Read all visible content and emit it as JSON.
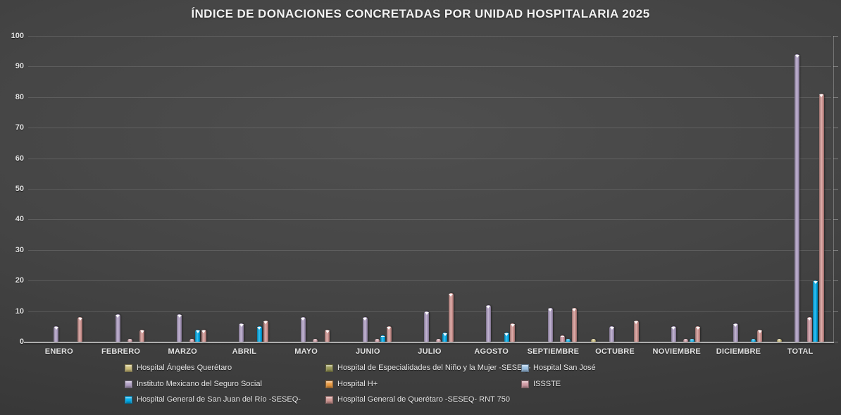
{
  "chart_data": {
    "type": "bar",
    "title": "ÍNDICE DE DONACIONES CONCRETADAS POR UNIDAD HOSPITALARIA 2025",
    "categories": [
      "ENERO",
      "FEBRERO",
      "MARZO",
      "ABRIL",
      "MAYO",
      "JUNIO",
      "JULIO",
      "AGOSTO",
      "SEPTIEMBRE",
      "OCTUBRE",
      "NOVIEMBRE",
      "DICIEMBRE",
      "TOTAL"
    ],
    "series": [
      {
        "name": "Hospital Ángeles Querétaro",
        "color": "#cfc07a",
        "values": [
          0,
          0,
          0,
          0,
          0,
          0,
          0,
          0,
          0,
          1,
          0,
          0,
          1
        ]
      },
      {
        "name": "Hospital de Especialidades del Niño y la Mujer -SESEQ-",
        "color": "#9a9a57",
        "values": [
          0,
          0,
          0,
          0,
          0,
          0,
          0,
          0,
          0,
          0,
          0,
          0,
          0
        ]
      },
      {
        "name": "Hospital San José",
        "color": "#9dc3e6",
        "values": [
          0,
          0,
          0,
          0,
          0,
          0,
          0,
          0,
          0,
          0,
          0,
          0,
          0
        ]
      },
      {
        "name": "Instituto Mexicano del Seguro Social",
        "color": "#b2a1c7",
        "values": [
          5,
          9,
          9,
          6,
          8,
          8,
          10,
          12,
          11,
          5,
          5,
          6,
          94
        ]
      },
      {
        "name": "Hospital H+",
        "color": "#ed9b40",
        "values": [
          0,
          0,
          0,
          0,
          0,
          0,
          0,
          0,
          0,
          0,
          0,
          0,
          0
        ]
      },
      {
        "name": "ISSSTE",
        "color": "#d39ca6",
        "values": [
          0,
          1,
          1,
          0,
          1,
          1,
          1,
          0,
          2,
          0,
          1,
          0,
          8
        ]
      },
      {
        "name": "Hospital General de San Juan del Río -SESEQ-",
        "color": "#00b0f0",
        "values": [
          0,
          0,
          4,
          5,
          0,
          2,
          3,
          3,
          1,
          0,
          1,
          1,
          20
        ]
      },
      {
        "name": "Hospital General de Querétaro -SESEQ- RNT 750",
        "color": "#d59894",
        "values": [
          8,
          4,
          4,
          7,
          4,
          5,
          16,
          6,
          11,
          7,
          5,
          4,
          81
        ]
      }
    ],
    "ylim": [
      0,
      100
    ],
    "ytick_step": 10,
    "grid": true,
    "legend_position": "bottom"
  }
}
